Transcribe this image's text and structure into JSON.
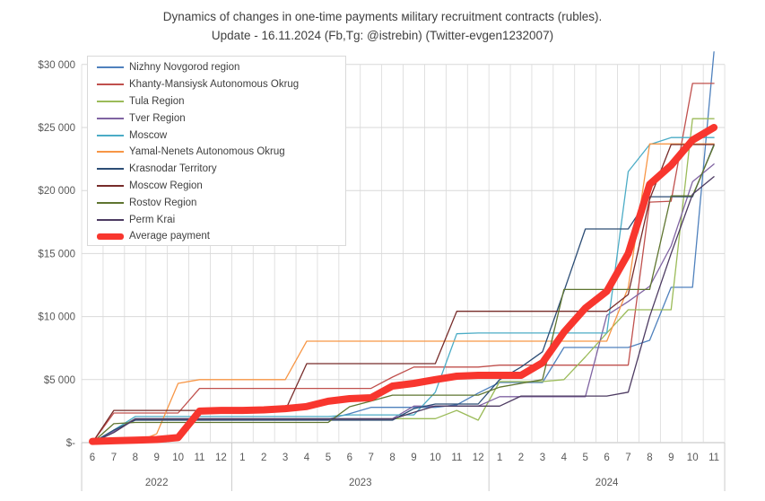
{
  "title": {
    "line1": "Dynamics of changes in one-time payments мilitary recruitment contracts (rubles).",
    "line2": "Update - 16.11.2024 (Fb,Tg: @istrebin) (Twitter-evgen1232007)"
  },
  "colors": {
    "axis_text": "#595959",
    "gridline": "#d9d9d9",
    "axis_line": "#bfbfbf",
    "title_text": "#3f3f3f",
    "background": "#ffffff"
  },
  "chart_data": {
    "type": "line",
    "x_months": [
      "6",
      "7",
      "8",
      "9",
      "10",
      "11",
      "12",
      "1",
      "2",
      "3",
      "4",
      "5",
      "6",
      "7",
      "8",
      "9",
      "10",
      "11",
      "12",
      "1",
      "2",
      "3",
      "4",
      "5",
      "6",
      "7",
      "8",
      "9",
      "10",
      "11"
    ],
    "year_groups": [
      {
        "label": "2022",
        "span": 7
      },
      {
        "label": "2023",
        "span": 12
      },
      {
        "label": "2024",
        "span": 11
      }
    ],
    "y_tick_labels": [
      "$-",
      "$5 000",
      "$10 000",
      "$15 000",
      "$20 000",
      "$25 000",
      "$30 000"
    ],
    "y_tick_values": [
      0,
      5000,
      10000,
      15000,
      20000,
      25000,
      30000
    ],
    "ylim": [
      0,
      31000
    ],
    "grid": "both",
    "legend_position": "top-left-inside",
    "series": [
      {
        "name": "Nizhny Novgorod region",
        "color": "#4f81bd",
        "thick": false,
        "values": [
          0,
          950,
          1870,
          1870,
          1870,
          1870,
          1870,
          1870,
          1870,
          1870,
          1870,
          1870,
          2300,
          2800,
          2800,
          2800,
          2800,
          3000,
          3930,
          4770,
          4770,
          4770,
          7550,
          7550,
          7550,
          7550,
          8120,
          12320,
          12320,
          31000
        ]
      },
      {
        "name": "Khanty-Mansiysk Autonomous Okrug",
        "color": "#c0504d",
        "thick": false,
        "values": [
          0,
          2350,
          2350,
          2350,
          2350,
          4300,
          4300,
          4300,
          4300,
          4300,
          4300,
          4300,
          4300,
          4300,
          5200,
          6000,
          6000,
          6000,
          6000,
          6150,
          6150,
          6150,
          6150,
          6150,
          6150,
          6150,
          19080,
          19150,
          28500,
          28500
        ]
      },
      {
        "name": "Tula Region",
        "color": "#9bbb59",
        "thick": false,
        "values": [
          0,
          1000,
          1900,
          1900,
          1900,
          1900,
          1900,
          1900,
          1900,
          1900,
          1900,
          1900,
          1900,
          1900,
          1900,
          1900,
          1900,
          2560,
          1780,
          4840,
          4840,
          4840,
          5000,
          6800,
          8700,
          10540,
          10540,
          10540,
          25700,
          25700
        ]
      },
      {
        "name": "Tver Region",
        "color": "#8064a2",
        "thick": false,
        "values": [
          0,
          900,
          1900,
          1900,
          1900,
          1900,
          1900,
          1900,
          1900,
          1900,
          1900,
          1900,
          1900,
          1900,
          1900,
          2900,
          2900,
          2900,
          2900,
          3650,
          3650,
          3650,
          3650,
          3650,
          10100,
          11200,
          12400,
          15600,
          20700,
          22100
        ]
      },
      {
        "name": "Moscow",
        "color": "#4bacc6",
        "thick": false,
        "values": [
          0,
          1000,
          2070,
          2070,
          2070,
          2070,
          2070,
          2070,
          2070,
          2070,
          2070,
          2070,
          2200,
          2200,
          2200,
          2200,
          4000,
          8640,
          8700,
          8700,
          8700,
          8700,
          8700,
          8700,
          8700,
          21500,
          23650,
          24200,
          24200,
          24200
        ]
      },
      {
        "name": "Yamal-Nenets Autonomous Okrug",
        "color": "#f79646",
        "thick": false,
        "values": [
          0,
          0,
          0,
          700,
          4700,
          5000,
          5000,
          5000,
          5000,
          5000,
          8050,
          8050,
          8050,
          8050,
          8050,
          8050,
          8050,
          8050,
          8050,
          8050,
          8050,
          8050,
          8050,
          8050,
          8050,
          12300,
          23700,
          23700,
          23700,
          23700
        ]
      },
      {
        "name": "Krasnodar Territory",
        "color": "#2c4d75",
        "thick": false,
        "values": [
          0,
          1000,
          1780,
          1780,
          1780,
          1780,
          1780,
          1780,
          1780,
          1780,
          1780,
          1780,
          1780,
          1780,
          1780,
          2700,
          3060,
          3060,
          3060,
          5000,
          6000,
          7210,
          12000,
          16950,
          16950,
          16950,
          19510,
          19510,
          19510,
          23650
        ]
      },
      {
        "name": "Moscow Region",
        "color": "#772c2a",
        "thick": false,
        "values": [
          0,
          2560,
          2560,
          2560,
          2560,
          2560,
          2560,
          2560,
          2560,
          2560,
          6270,
          6270,
          6270,
          6270,
          6270,
          6270,
          6270,
          10420,
          10420,
          10420,
          10420,
          10420,
          10420,
          10420,
          10420,
          11750,
          19300,
          23650,
          23650,
          23650
        ]
      },
      {
        "name": "Rostov Region",
        "color": "#5f7530",
        "thick": false,
        "values": [
          0,
          1500,
          1600,
          1600,
          1600,
          1600,
          1600,
          1600,
          1600,
          1600,
          1600,
          1600,
          2850,
          3300,
          3770,
          3770,
          3770,
          3770,
          3770,
          4400,
          4700,
          5000,
          12150,
          12150,
          12150,
          12150,
          12150,
          19580,
          19580,
          23570
        ]
      },
      {
        "name": "Perm Krai",
        "color": "#4d3b62",
        "thick": false,
        "values": [
          0,
          800,
          1870,
          1870,
          1870,
          1870,
          1870,
          1870,
          1870,
          1870,
          1870,
          1870,
          1870,
          1870,
          1870,
          2400,
          2900,
          2900,
          2900,
          2900,
          3700,
          3700,
          3700,
          3700,
          3700,
          4000,
          10000,
          15000,
          19700,
          21100
        ]
      },
      {
        "name": "Average payment",
        "color": "#f8362e",
        "thick": true,
        "values": [
          100,
          150,
          200,
          250,
          400,
          2500,
          2560,
          2560,
          2600,
          2700,
          2860,
          3280,
          3490,
          3560,
          4490,
          4700,
          5000,
          5270,
          5340,
          5340,
          5340,
          6340,
          8760,
          10680,
          12000,
          15000,
          20500,
          22000,
          24000,
          25000
        ]
      }
    ]
  }
}
